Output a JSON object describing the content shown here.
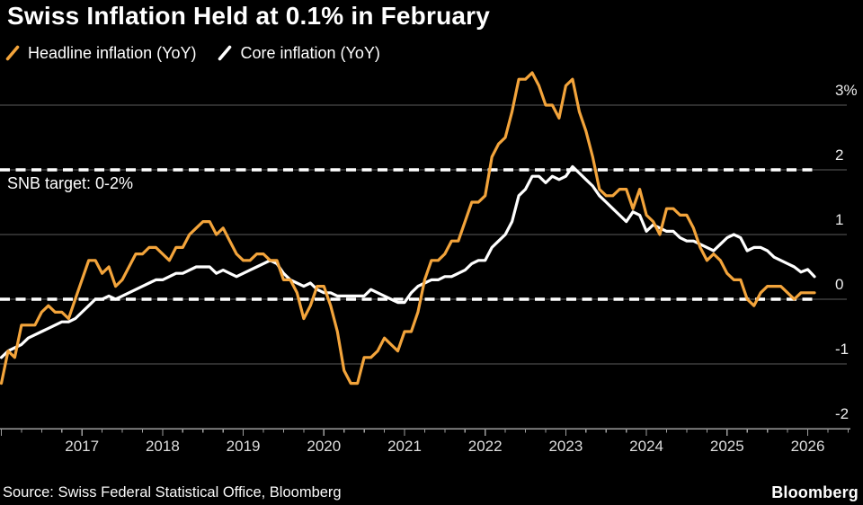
{
  "header": {
    "title": "Swiss Inflation Held at 0.1% in February",
    "legend": [
      {
        "label": "Headline inflation (YoY)",
        "color": "#F3A43B",
        "icon": "line-swatch-icon"
      },
      {
        "label": "Core inflation (YoY)",
        "color": "#FFFFFF",
        "icon": "line-swatch-icon"
      }
    ]
  },
  "annotations": {
    "snb_target_label": "SNB target: 0-2%"
  },
  "footer": {
    "source": "Source: Swiss Federal Statistical Office, Bloomberg",
    "brand": "Bloomberg"
  },
  "colors": {
    "background": "#000000",
    "headline_series": "#F3A43B",
    "core_series": "#FFFFFF",
    "gridline": "#5c5c5c",
    "axis": "#9e9e9e",
    "target_dash": "#FFFFFF",
    "axis_label": "#ececec"
  },
  "chart_data": {
    "type": "line",
    "title": "Swiss Inflation Held at 0.1% in February",
    "frequency": "monthly",
    "x_start": {
      "year": 2016,
      "month": 1
    },
    "x_end": {
      "year": 2026,
      "month": 2
    },
    "x_tick_years": [
      2017,
      2018,
      2019,
      2020,
      2021,
      2022,
      2023,
      2024,
      2025,
      2026
    ],
    "minor_tick_interval_months": 3,
    "ylim": [
      -2,
      3.6
    ],
    "y_ticks": [
      {
        "value": 3,
        "label": "3%"
      },
      {
        "value": 2,
        "label": "2"
      },
      {
        "value": 1,
        "label": "1"
      },
      {
        "value": 0,
        "label": "0"
      },
      {
        "value": -1,
        "label": "-1"
      },
      {
        "value": -2,
        "label": "-2"
      }
    ],
    "grid": "horizontal",
    "legend_position": "top-left",
    "target_band": {
      "label": "SNB target: 0-2%",
      "lines": [
        2,
        0
      ],
      "style": "dashed-white"
    },
    "series": [
      {
        "name": "Headline inflation (YoY)",
        "color": "#F3A43B",
        "values": [
          -1.3,
          -0.8,
          -0.9,
          -0.4,
          -0.4,
          -0.4,
          -0.2,
          -0.1,
          -0.2,
          -0.2,
          -0.3,
          0.0,
          0.3,
          0.6,
          0.6,
          0.4,
          0.5,
          0.2,
          0.3,
          0.5,
          0.7,
          0.7,
          0.8,
          0.8,
          0.7,
          0.6,
          0.8,
          0.8,
          1.0,
          1.1,
          1.2,
          1.2,
          1.0,
          1.1,
          0.9,
          0.7,
          0.6,
          0.6,
          0.7,
          0.7,
          0.6,
          0.6,
          0.3,
          0.3,
          0.1,
          -0.3,
          -0.1,
          0.2,
          0.2,
          -0.1,
          -0.5,
          -1.1,
          -1.3,
          -1.3,
          -0.9,
          -0.9,
          -0.8,
          -0.6,
          -0.7,
          -0.8,
          -0.5,
          -0.5,
          -0.2,
          0.3,
          0.6,
          0.6,
          0.7,
          0.9,
          0.9,
          1.2,
          1.5,
          1.5,
          1.6,
          2.2,
          2.4,
          2.5,
          2.9,
          3.4,
          3.4,
          3.5,
          3.3,
          3.0,
          3.0,
          2.8,
          3.3,
          3.4,
          2.9,
          2.6,
          2.2,
          1.7,
          1.6,
          1.6,
          1.7,
          1.7,
          1.4,
          1.7,
          1.3,
          1.2,
          1.0,
          1.4,
          1.4,
          1.3,
          1.3,
          1.1,
          0.8,
          0.6,
          0.7,
          0.6,
          0.4,
          0.3,
          0.3,
          0.0,
          -0.1,
          0.1,
          0.2,
          0.2,
          0.2,
          0.1,
          0.0,
          0.1,
          0.1,
          0.1
        ]
      },
      {
        "name": "Core inflation (YoY)",
        "color": "#FFFFFF",
        "values": [
          -0.9,
          -0.8,
          -0.75,
          -0.7,
          -0.6,
          -0.55,
          -0.5,
          -0.45,
          -0.4,
          -0.35,
          -0.35,
          -0.3,
          -0.2,
          -0.1,
          0.0,
          0.0,
          0.05,
          0.0,
          0.05,
          0.1,
          0.15,
          0.2,
          0.25,
          0.3,
          0.3,
          0.35,
          0.4,
          0.4,
          0.45,
          0.5,
          0.5,
          0.5,
          0.4,
          0.45,
          0.4,
          0.35,
          0.4,
          0.45,
          0.5,
          0.55,
          0.6,
          0.55,
          0.4,
          0.3,
          0.25,
          0.2,
          0.25,
          0.15,
          0.1,
          0.1,
          0.05,
          0.05,
          0.05,
          0.05,
          0.05,
          0.15,
          0.1,
          0.05,
          0.0,
          -0.05,
          -0.05,
          0.1,
          0.2,
          0.25,
          0.3,
          0.3,
          0.35,
          0.35,
          0.4,
          0.45,
          0.55,
          0.6,
          0.6,
          0.8,
          0.9,
          1.0,
          1.2,
          1.6,
          1.7,
          1.9,
          1.9,
          1.8,
          1.9,
          1.85,
          1.9,
          2.05,
          1.95,
          1.85,
          1.75,
          1.6,
          1.5,
          1.4,
          1.3,
          1.2,
          1.35,
          1.3,
          1.05,
          1.15,
          1.1,
          1.05,
          1.05,
          0.95,
          0.9,
          0.9,
          0.85,
          0.8,
          0.75,
          0.85,
          0.95,
          1.0,
          0.95,
          0.75,
          0.8,
          0.8,
          0.75,
          0.65,
          0.6,
          0.55,
          0.5,
          0.42,
          0.46,
          0.35
        ]
      }
    ]
  }
}
